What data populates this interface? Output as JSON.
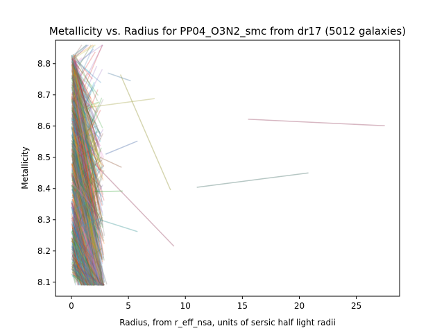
{
  "chart_data": {
    "type": "line",
    "title": "Metallicity vs. Radius for PP04_O3N2_smc from dr17 (5012 galaxies)",
    "xlabel": "Radius, from r_eff_nsa, units of sersic half light radii",
    "ylabel": "Metallicity",
    "xlim": [
      -1.4,
      28.8
    ],
    "ylim": [
      8.055,
      8.875
    ],
    "xticks": [
      0,
      5,
      10,
      15,
      20,
      25
    ],
    "yticks": [
      8.1,
      8.2,
      8.3,
      8.4,
      8.5,
      8.6,
      8.7,
      8.8
    ],
    "grid": false,
    "legend": "none",
    "n_galaxies": 5012,
    "series_alpha": 0.25,
    "palette": [
      "#1f77b4",
      "#ff7f0e",
      "#2ca02c",
      "#d62728",
      "#9467bd",
      "#8c564b",
      "#e377c2",
      "#7f7f7f",
      "#bcbd22",
      "#17becf",
      "#556b2f",
      "#4682b4"
    ],
    "outlier_series": [
      {
        "x": [
          15.5,
          27.5
        ],
        "y": [
          8.622,
          8.601
        ],
        "color": "#8c3050"
      },
      {
        "x": [
          11.0,
          20.8
        ],
        "y": [
          8.404,
          8.45
        ],
        "color": "#2f5f55"
      },
      {
        "x": [
          4.3,
          8.7
        ],
        "y": [
          8.765,
          8.395
        ],
        "color": "#8a8a20"
      },
      {
        "x": [
          1.5,
          7.3
        ],
        "y": [
          8.66,
          8.688
        ],
        "color": "#a0a040"
      },
      {
        "x": [
          3.2,
          5.2
        ],
        "y": [
          8.77,
          8.745
        ],
        "color": "#4a7aa0"
      },
      {
        "x": [
          2.0,
          9.0
        ],
        "y": [
          8.48,
          8.215
        ],
        "color": "#8c3050"
      },
      {
        "x": [
          2.5,
          5.8
        ],
        "y": [
          8.3,
          8.262
        ],
        "color": "#2f8f8f"
      },
      {
        "x": [
          3.0,
          5.8
        ],
        "y": [
          8.51,
          8.552
        ],
        "color": "#3a5fa0"
      },
      {
        "x": [
          2.5,
          4.4
        ],
        "y": [
          8.5,
          8.468
        ],
        "color": "#8c5030"
      },
      {
        "x": [
          2.0,
          4.5
        ],
        "y": [
          8.39,
          8.392
        ],
        "color": "#2ca02c"
      },
      {
        "x": [
          1.8,
          3.1
        ],
        "y": [
          8.25,
          8.093
        ],
        "color": "#7f7f7f"
      }
    ]
  }
}
